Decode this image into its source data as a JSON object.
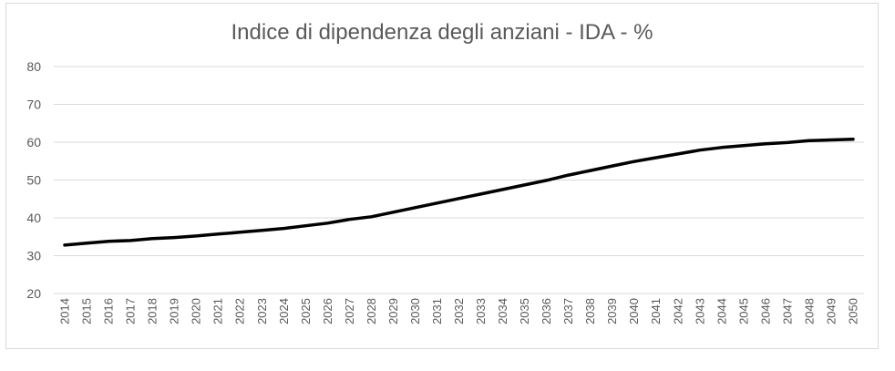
{
  "chart_data": {
    "type": "line",
    "title": "Indice di dipendenza degli anziani - IDA - %",
    "xlabel": "",
    "ylabel": "",
    "ylim": [
      20,
      80
    ],
    "yticks": [
      20,
      30,
      40,
      50,
      60,
      70,
      80
    ],
    "grid": true,
    "legend": "none",
    "colors": {
      "line": "#000000",
      "grid": "#d9d9d9",
      "text": "#595959"
    },
    "categories": [
      "2014",
      "2015",
      "2016",
      "2017",
      "2018",
      "2019",
      "2020",
      "2021",
      "2022",
      "2023",
      "2024",
      "2025",
      "2026",
      "2027",
      "2028",
      "2029",
      "2030",
      "2031",
      "2032",
      "2033",
      "2034",
      "2035",
      "2036",
      "2037",
      "2038",
      "2039",
      "2040",
      "2041",
      "2042",
      "2043",
      "2044",
      "2045",
      "2046",
      "2047",
      "2048",
      "2049",
      "2050"
    ],
    "series": [
      {
        "values": [
          32.8,
          33.3,
          33.8,
          34.0,
          34.5,
          34.8,
          35.2,
          35.7,
          36.2,
          36.7,
          37.2,
          37.9,
          38.6,
          39.6,
          40.3,
          41.5,
          42.7,
          43.9,
          45.1,
          46.3,
          47.5,
          48.7,
          49.9,
          51.3,
          52.5,
          53.7,
          54.9,
          55.9,
          56.9,
          57.9,
          58.6,
          59.1,
          59.6,
          59.9,
          60.4,
          60.6,
          60.8
        ]
      }
    ]
  }
}
